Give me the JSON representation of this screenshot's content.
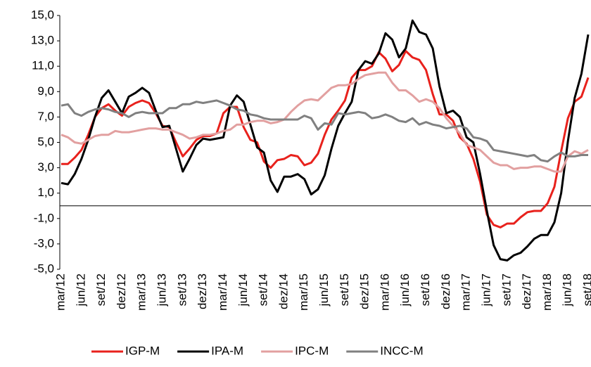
{
  "chart_data": {
    "type": "line",
    "categories": [
      "mar/12",
      null,
      null,
      "jun/12",
      null,
      null,
      "set/12",
      null,
      null,
      "dez/12",
      null,
      null,
      "mar/13",
      null,
      null,
      "jun/13",
      null,
      null,
      "set/13",
      null,
      null,
      "dez/13",
      null,
      null,
      "mar/14",
      null,
      null,
      "jun/14",
      null,
      null,
      "set/14",
      null,
      null,
      "dez/14",
      null,
      null,
      "mar/15",
      null,
      null,
      "jun/15",
      null,
      null,
      "set/15",
      null,
      null,
      "dez/15",
      null,
      null,
      "mar/16",
      null,
      null,
      "jun/16",
      null,
      null,
      "set/16",
      null,
      null,
      "dez/16",
      null,
      null,
      "mar/17",
      null,
      null,
      "jun/17",
      null,
      null,
      "set/17",
      null,
      null,
      "dez/17",
      null,
      null,
      "mar/18",
      null,
      null,
      "jun/18",
      null,
      null,
      "set/18"
    ],
    "series": [
      {
        "name": "IGP-M",
        "color": "#e8211c",
        "values": [
          3.3,
          3.3,
          3.8,
          4.4,
          5.6,
          7.0,
          7.7,
          8.0,
          7.5,
          7.1,
          7.8,
          8.1,
          8.3,
          8.1,
          7.3,
          6.3,
          6.2,
          5.0,
          3.9,
          4.5,
          5.2,
          5.5,
          5.5,
          5.7,
          7.3,
          7.8,
          7.8,
          6.2,
          5.2,
          5.0,
          3.5,
          3.0,
          3.6,
          3.7,
          4.0,
          3.9,
          3.2,
          3.4,
          4.1,
          5.6,
          6.8,
          7.5,
          8.3,
          10.1,
          10.7,
          10.7,
          11.0,
          12.1,
          11.6,
          10.6,
          11.1,
          12.2,
          11.7,
          11.5,
          10.7,
          8.8,
          7.2,
          7.2,
          6.7,
          5.4,
          4.9,
          3.7,
          1.9,
          -0.7,
          -1.5,
          -1.7,
          -1.4,
          -1.4,
          -0.9,
          -0.5,
          -0.4,
          -0.4,
          0.2,
          1.5,
          4.3,
          6.9,
          8.2,
          8.6,
          10.1
        ]
      },
      {
        "name": "IPA-M",
        "color": "#000000",
        "values": [
          1.8,
          1.7,
          2.5,
          3.7,
          5.2,
          7.0,
          8.5,
          9.1,
          8.2,
          7.3,
          8.6,
          8.9,
          9.3,
          8.9,
          7.5,
          6.2,
          6.3,
          4.5,
          2.7,
          3.7,
          4.8,
          5.3,
          5.2,
          5.3,
          5.4,
          7.9,
          8.7,
          8.2,
          6.4,
          4.6,
          4.2,
          2.0,
          1.1,
          2.3,
          2.3,
          2.5,
          2.1,
          0.9,
          1.3,
          2.4,
          4.5,
          6.3,
          7.3,
          8.2,
          10.7,
          11.4,
          11.2,
          12.0,
          13.6,
          13.1,
          11.7,
          12.4,
          14.6,
          13.7,
          13.5,
          12.4,
          9.4,
          7.3,
          7.5,
          7.0,
          5.4,
          5.0,
          2.5,
          -0.4,
          -3.1,
          -4.2,
          -4.3,
          -3.9,
          -3.7,
          -3.2,
          -2.6,
          -2.3,
          -2.3,
          -1.3,
          1.0,
          5.1,
          8.5,
          10.4,
          13.5
        ]
      },
      {
        "name": "IPC-M",
        "color": "#e2a0a0",
        "values": [
          5.6,
          5.4,
          5.0,
          4.9,
          5.2,
          5.5,
          5.6,
          5.6,
          5.9,
          5.8,
          5.8,
          5.9,
          6.0,
          6.1,
          6.1,
          6.0,
          6.0,
          5.8,
          5.6,
          5.3,
          5.4,
          5.6,
          5.6,
          5.7,
          5.9,
          6.0,
          6.4,
          6.4,
          6.6,
          6.7,
          6.7,
          6.5,
          6.6,
          6.8,
          7.4,
          7.9,
          8.3,
          8.4,
          8.3,
          8.8,
          9.3,
          9.5,
          9.5,
          9.6,
          10.0,
          10.3,
          10.4,
          10.5,
          10.5,
          9.7,
          9.1,
          9.1,
          8.7,
          8.2,
          8.4,
          8.2,
          7.7,
          6.9,
          6.3,
          5.7,
          4.8,
          4.6,
          4.4,
          3.9,
          3.4,
          3.2,
          3.2,
          2.9,
          3.0,
          3.0,
          3.1,
          3.1,
          2.9,
          2.7,
          2.7,
          3.9,
          4.3,
          4.1,
          4.4
        ]
      },
      {
        "name": "INCC-M",
        "color": "#808080",
        "values": [
          7.9,
          8.0,
          7.3,
          7.1,
          7.4,
          7.6,
          7.7,
          7.6,
          7.4,
          7.3,
          7.0,
          7.3,
          7.4,
          7.3,
          7.3,
          7.3,
          7.7,
          7.7,
          8.0,
          8.0,
          8.2,
          8.1,
          8.2,
          8.3,
          8.1,
          7.9,
          7.6,
          7.5,
          7.2,
          7.1,
          6.9,
          6.8,
          6.8,
          6.8,
          6.8,
          6.8,
          7.1,
          6.9,
          6.0,
          6.5,
          6.4,
          7.3,
          7.2,
          7.3,
          7.4,
          7.3,
          6.9,
          7.0,
          7.2,
          7.0,
          6.7,
          6.6,
          6.9,
          6.4,
          6.6,
          6.4,
          6.3,
          6.1,
          6.2,
          6.3,
          6.1,
          5.4,
          5.3,
          5.1,
          4.4,
          4.3,
          4.2,
          4.1,
          4.0,
          3.9,
          4.0,
          3.6,
          3.5,
          3.9,
          4.2,
          3.9,
          3.9,
          4.0,
          4.0
        ]
      }
    ],
    "ylim": [
      -5,
      15
    ],
    "yticks": [
      {
        "value": -5,
        "label": "-5,0"
      },
      {
        "value": -3,
        "label": "-3,0"
      },
      {
        "value": -1,
        "label": "-1,0"
      },
      {
        "value": 1,
        "label": "1,0"
      },
      {
        "value": 3,
        "label": "3,0"
      },
      {
        "value": 5,
        "label": "5,0"
      },
      {
        "value": 7,
        "label": "7,0"
      },
      {
        "value": 9,
        "label": "9,0"
      },
      {
        "value": 11,
        "label": "11,0"
      },
      {
        "value": 13,
        "label": "13,0"
      },
      {
        "value": 15,
        "label": "15,0"
      }
    ],
    "legend": "bottom"
  }
}
